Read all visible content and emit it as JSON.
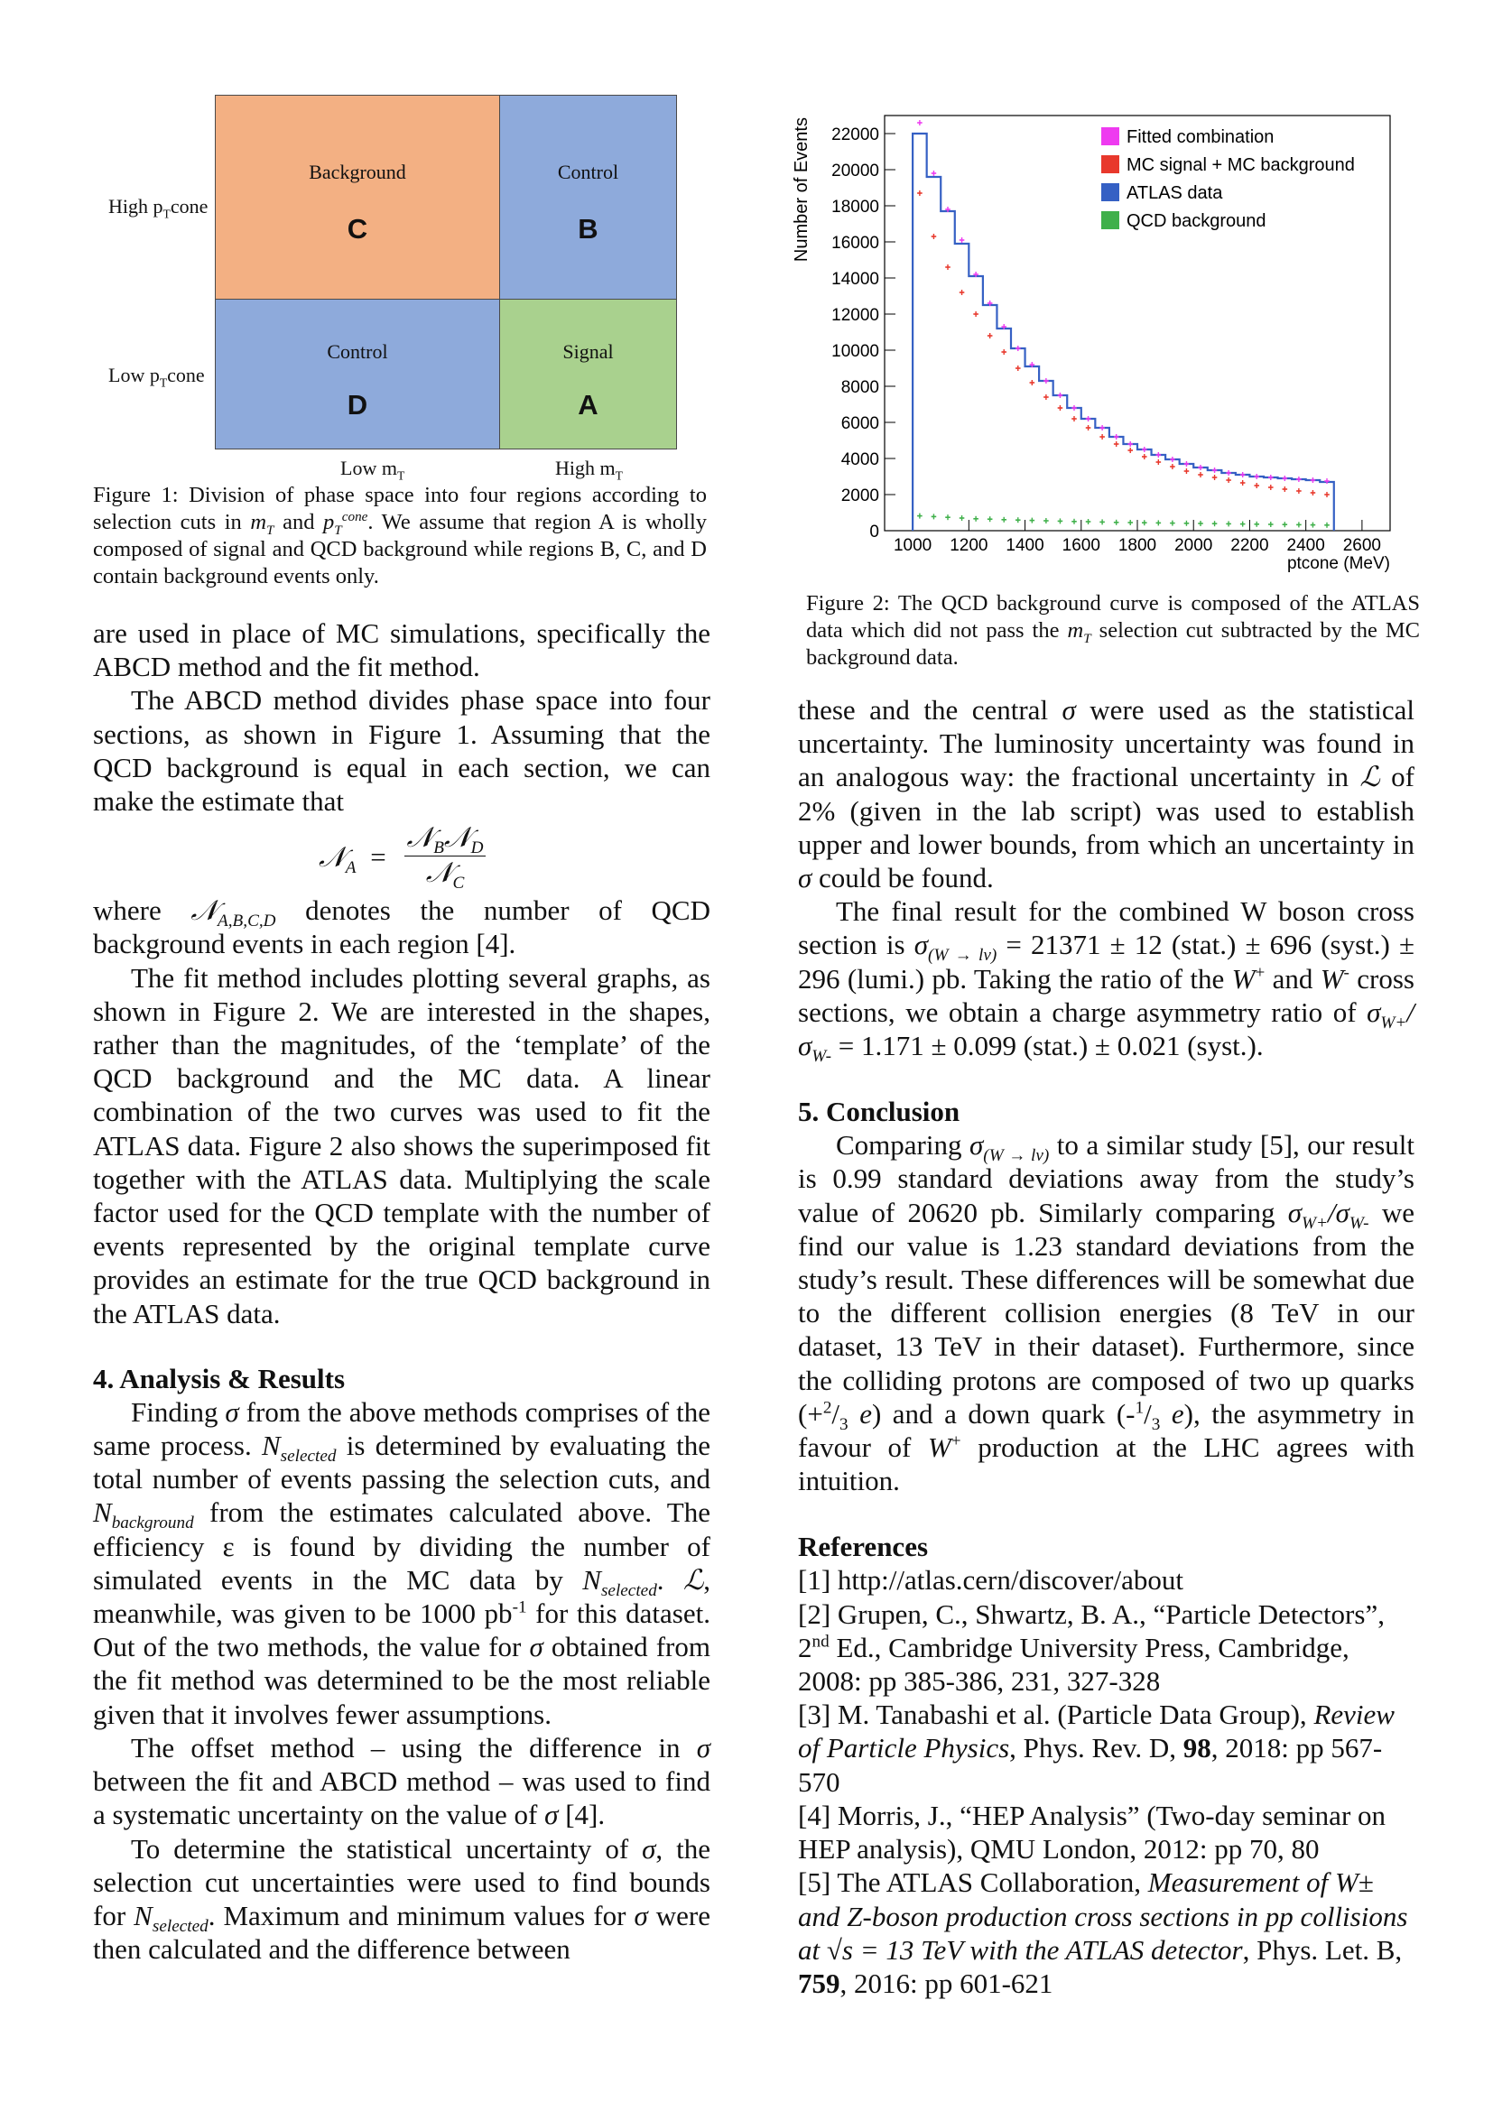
{
  "figure1": {
    "regions": [
      {
        "id": "C",
        "label": "Background",
        "letter": "C",
        "color": "#f3b083"
      },
      {
        "id": "B",
        "label": "Control",
        "letter": "B",
        "color": "#8eaadb"
      },
      {
        "id": "D",
        "label": "Control",
        "letter": "D",
        "color": "#8eaadb"
      },
      {
        "id": "A",
        "label": "Signal",
        "letter": "A",
        "color": "#a9d18e"
      }
    ],
    "y_high": "High p",
    "y_low": "Low p",
    "y_sub": "T",
    "y_suffix": "cone",
    "x_low": "Low m",
    "x_high": "High m",
    "x_sub": "T",
    "caption_prefix": "Figure 1: Division of phase space into four regions according to selection cuts in ",
    "caption_mid": " and ",
    "caption_suffix": ". We assume that region A is wholly composed of signal and QCD background while regions B, C, and D contain background events only."
  },
  "figure2": {
    "caption_prefix": "Figure 2: The QCD background curve is composed of the ATLAS data which did not pass the ",
    "caption_suffix": " selection cut subtracted by the MC background data."
  },
  "chart_data": {
    "type": "line",
    "xlabel": "ptcone (MeV)",
    "ylabel": "Number of Events",
    "xlim": [
      900,
      2700
    ],
    "ylim": [
      0,
      23000
    ],
    "x_ticks": [
      1000,
      1200,
      1400,
      1600,
      1800,
      2000,
      2200,
      2400,
      2600
    ],
    "y_ticks": [
      0,
      2000,
      4000,
      6000,
      8000,
      10000,
      12000,
      14000,
      16000,
      18000,
      20000,
      22000
    ],
    "bin_edges": [
      1000,
      1050,
      1100,
      1150,
      1200,
      1250,
      1300,
      1350,
      1400,
      1450,
      1500,
      1550,
      1600,
      1650,
      1700,
      1750,
      1800,
      1850,
      1900,
      1950,
      2000,
      2050,
      2100,
      2150,
      2200,
      2250,
      2300,
      2350,
      2400,
      2450,
      2500
    ],
    "legend_position": "top-right",
    "series": [
      {
        "name": "Fitted combination",
        "color": "#ee3af0",
        "style": "errorbar",
        "values": [
          22600,
          19800,
          17800,
          16100,
          14200,
          12600,
          11300,
          10100,
          9200,
          8300,
          7500,
          6800,
          6200,
          5700,
          5200,
          4800,
          4500,
          4200,
          3950,
          3700,
          3500,
          3350,
          3200,
          3100,
          3000,
          2950,
          2900,
          2850,
          2800,
          2750
        ]
      },
      {
        "name": "MC signal + MC background",
        "color": "#e8382c",
        "style": "errorbar",
        "values": [
          18700,
          16300,
          14600,
          13200,
          12000,
          10800,
          9900,
          9000,
          8200,
          7400,
          6800,
          6200,
          5700,
          5200,
          4800,
          4450,
          4100,
          3800,
          3550,
          3300,
          3100,
          2950,
          2800,
          2650,
          2500,
          2400,
          2300,
          2200,
          2100,
          2000
        ]
      },
      {
        "name": "ATLAS data",
        "color": "#3560c4",
        "style": "step",
        "values": [
          22000,
          19600,
          17700,
          15900,
          14100,
          12500,
          11200,
          10100,
          9100,
          8300,
          7500,
          6800,
          6200,
          5700,
          5200,
          4800,
          4500,
          4200,
          3950,
          3700,
          3500,
          3350,
          3200,
          3100,
          3000,
          2950,
          2900,
          2850,
          2800,
          2700
        ]
      },
      {
        "name": "QCD background",
        "color": "#3fb04a",
        "style": "errorbar",
        "values": [
          820,
          780,
          740,
          700,
          660,
          640,
          610,
          590,
          570,
          550,
          530,
          510,
          500,
          480,
          460,
          450,
          440,
          430,
          420,
          410,
          400,
          390,
          380,
          370,
          360,
          350,
          340,
          330,
          320,
          310
        ]
      }
    ]
  },
  "left_column": {
    "p1": "are used in place of MC simulations, specifically the ABCD method and the fit method.",
    "p2": "The ABCD method divides phase space into four sections, as shown in Figure 1. Assuming that the QCD background is equal in each section, we can make the estimate that",
    "eq_lhs": "𝒩",
    "eq_lhs_sub": "A",
    "eq_eq": "=",
    "eq_num": "𝒩",
    "eq_num_sub1": "B",
    "eq_num2": "𝒩",
    "eq_num_sub2": "D",
    "eq_den": "𝒩",
    "eq_den_sub": "C",
    "p3_prefix": "where ",
    "p3_sym": "𝒩",
    "p3_sub": "A,B,C,D",
    "p3_suffix": " denotes the number of QCD background events in each region [4].",
    "p4": "The fit method includes plotting several graphs, as shown in Figure 2. We are interested in the shapes, rather than the magnitudes, of the ‘template’ of the QCD background and the MC data. A linear combination of the two curves was used to fit the ATLAS data. Figure 2 also shows the superimposed fit together with the ATLAS data. Multiplying the scale factor used for the QCD template with the number of events represented by the original template curve provides an estimate for the true QCD background in the ATLAS data.",
    "heading4": "4. Analysis & Results",
    "p5_a": "Finding ",
    "sigma": "σ",
    "p5_b": " from the above methods comprises of the same process. ",
    "n_selected": "N",
    "selected": "selected",
    "p5_c": " is determined by evaluating the total number of events passing the selection cuts, and ",
    "n_background": "N",
    "background": "background",
    "p5_d": " from the estimates calculated above. The efficiency ε is found by dividing the number of simulated events in the MC data by ",
    "p5_e": ". ",
    "script_L": "ℒ",
    "p5_f": ", meanwhile, was given to be 1000 pb",
    "pb_exp": "-1",
    "p5_g": " for this dataset. Out of the two methods, the value for ",
    "p5_h": " obtained from the fit method was determined to be the most reliable given that it involves fewer assumptions.",
    "p6_a": "The offset method – using the difference in ",
    "p6_b": " between the fit and ABCD method – was used to find a systematic uncertainty on the value of ",
    "p6_c": " [4].",
    "p7_a": "To determine the statistical uncertainty of ",
    "p7_b": ", the selection cut uncertainties were used to find bounds for ",
    "p7_c": ". Maximum and minimum values for ",
    "p7_d": " were then calculated and the difference between"
  },
  "right_column": {
    "p1_a": "these and the central ",
    "p1_b": " were used as the statistical uncertainty. The luminosity uncertainty was found in an analogous way: the fractional uncertainty in ",
    "p1_c": " of 2% (given in the lab script) was used to establish upper and lower bounds, from which an uncertainty in ",
    "p1_d": " could be found.",
    "p2_a": "The final result for the combined W boson cross section is ",
    "sigma_sub": "(W → lν)",
    "p2_b": " = 21371 ± 12 (stat.) ± 696 (syst.) ± 296 (lumi.) pb. Taking the ratio of the ",
    "W": "W",
    "plus": "+",
    "p2_c": " and ",
    "minus": "-",
    "p2_d": " cross sections, we obtain a charge asymmetry ratio of ",
    "sig_wplus_sub": "W+",
    "slash": "/",
    "sig_wminus_sub": "W-",
    "p2_e": " = 1.171 ± 0.099 (stat.) ± 0.021 (syst.).",
    "heading5": "5. Conclusion",
    "p3_a": "Comparing ",
    "p3_b": " to a similar study [5], our result is 0.99 standard deviations away from the study’s value of 20620 pb. Similarly comparing ",
    "p3_c": " we find our value is 1.23 standard deviations from the study’s result. These differences will be somewhat due to the different collision energies (8 TeV in our dataset, 13 TeV in their dataset). Furthermore, since the colliding protons are composed of two up quarks (+",
    "two": "2",
    "three": "3",
    "e": "e",
    "p3_d": ") and a down quark (-",
    "one": "1",
    "p3_e": "), the asymmetry in favour of ",
    "p3_f": " production at the LHC agrees with intuition.",
    "references_heading": "References",
    "ref1": "[1] http://atlas.cern/discover/about",
    "ref2_a": "[2] Grupen, C., Shwartz, B. A., “Particle Detectors”, 2",
    "ref2_nd": "nd",
    "ref2_b": " Ed., Cambridge University Press, Cambridge, 2008: pp 385-386, 231, 327-328",
    "ref3_a": "[3] M. Tanabashi et al. (Particle Data Group), ",
    "ref3_i": "Review of Particle Physics",
    "ref3_b": ", Phys. Rev. D, ",
    "ref3_bold": "98",
    "ref3_c": ", 2018: pp 567-570",
    "ref4": "[4] Morris, J., “HEP Analysis” (Two-day seminar on HEP analysis), QMU London, 2012: pp 70, 80",
    "ref5_a": "[5] The ATLAS Collaboration, ",
    "ref5_i1": "Measurement of W",
    "ref5_pm": "±",
    "ref5_i2": " and Z-boson production cross sections in pp collisions at √s = 13 TeV with the ATLAS detector",
    "ref5_b": ", Phys. Let. B, ",
    "ref5_bold": "759",
    "ref5_c": ", 2016: pp 601-621"
  }
}
